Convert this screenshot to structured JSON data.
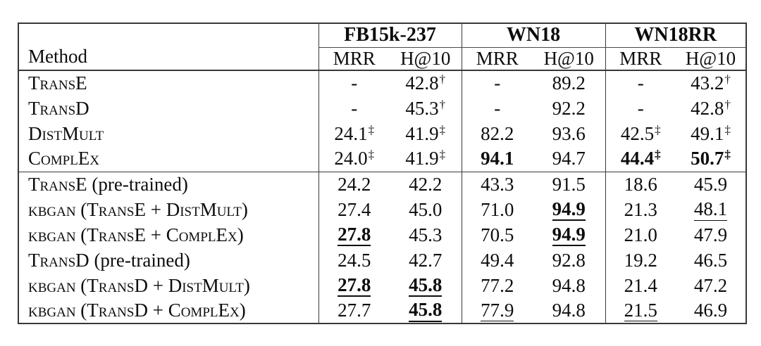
{
  "table": {
    "method_header": "Method",
    "datasets": [
      "FB15k-237",
      "WN18",
      "WN18RR"
    ],
    "metric_headers": [
      "MRR",
      "H@10",
      "MRR",
      "H@10",
      "MRR",
      "H@10"
    ],
    "footnote_markers": {
      "dagger": "†",
      "double_dagger": "‡"
    },
    "groups": [
      {
        "rows": [
          {
            "method_sc": "TransE",
            "method_plain": "",
            "cells": [
              {
                "v": "-"
              },
              {
                "v": "42.8",
                "sup": "†"
              },
              {
                "v": "-"
              },
              {
                "v": "89.2"
              },
              {
                "v": "-"
              },
              {
                "v": "43.2",
                "sup": "†"
              }
            ]
          },
          {
            "method_sc": "TransD",
            "method_plain": "",
            "cells": [
              {
                "v": "-"
              },
              {
                "v": "45.3",
                "sup": "†"
              },
              {
                "v": "-"
              },
              {
                "v": "92.2"
              },
              {
                "v": "-"
              },
              {
                "v": "42.8",
                "sup": "†"
              }
            ]
          },
          {
            "method_sc": "DistMult",
            "method_plain": "",
            "cells": [
              {
                "v": "24.1",
                "sup": "‡"
              },
              {
                "v": "41.9",
                "sup": "‡"
              },
              {
                "v": "82.2"
              },
              {
                "v": "93.6"
              },
              {
                "v": "42.5",
                "sup": "‡"
              },
              {
                "v": "49.1",
                "sup": "‡"
              }
            ]
          },
          {
            "method_sc": "ComplEx",
            "method_plain": "",
            "cells": [
              {
                "v": "24.0",
                "sup": "‡"
              },
              {
                "v": "41.9",
                "sup": "‡"
              },
              {
                "v": "94.1",
                "b": true
              },
              {
                "v": "94.7"
              },
              {
                "v": "44.4",
                "sup": "‡",
                "b": true
              },
              {
                "v": "50.7",
                "sup": "‡",
                "b": true
              }
            ]
          }
        ]
      },
      {
        "rows": [
          {
            "method_sc": "TransE",
            "method_plain": " (pre-trained)",
            "cells": [
              {
                "v": "24.2"
              },
              {
                "v": "42.2"
              },
              {
                "v": "43.3"
              },
              {
                "v": "91.5"
              },
              {
                "v": "18.6"
              },
              {
                "v": "45.9"
              }
            ]
          },
          {
            "method_sc": "kbgan (TransE + DistMult)",
            "method_plain": "",
            "cells": [
              {
                "v": "27.4"
              },
              {
                "v": "45.0"
              },
              {
                "v": "71.0"
              },
              {
                "v": "94.9",
                "b": true,
                "u": true
              },
              {
                "v": "21.3"
              },
              {
                "v": "48.1",
                "u": true
              }
            ]
          },
          {
            "method_sc": "kbgan (TransE + ComplEx)",
            "method_plain": "",
            "cells": [
              {
                "v": "27.8",
                "b": true,
                "u": true
              },
              {
                "v": "45.3"
              },
              {
                "v": "70.5"
              },
              {
                "v": "94.9",
                "b": true,
                "u": true
              },
              {
                "v": "21.0"
              },
              {
                "v": "47.9"
              }
            ]
          },
          {
            "method_sc": "TransD",
            "method_plain": " (pre-trained)",
            "cells": [
              {
                "v": "24.5"
              },
              {
                "v": "42.7"
              },
              {
                "v": "49.4"
              },
              {
                "v": "92.8"
              },
              {
                "v": "19.2"
              },
              {
                "v": "46.5"
              }
            ]
          },
          {
            "method_sc": "kbgan (TransD + DistMult)",
            "method_plain": "",
            "cells": [
              {
                "v": "27.8",
                "b": true,
                "u": true
              },
              {
                "v": "45.8",
                "b": true,
                "u": true
              },
              {
                "v": "77.2"
              },
              {
                "v": "94.8"
              },
              {
                "v": "21.4"
              },
              {
                "v": "47.2"
              }
            ]
          },
          {
            "method_sc": "kbgan (TransD + ComplEx)",
            "method_plain": "",
            "cells": [
              {
                "v": "27.7"
              },
              {
                "v": "45.8",
                "b": true,
                "u": true
              },
              {
                "v": "77.9",
                "u": true
              },
              {
                "v": "94.8"
              },
              {
                "v": "21.5",
                "u": true
              },
              {
                "v": "46.9"
              }
            ]
          }
        ]
      }
    ]
  }
}
